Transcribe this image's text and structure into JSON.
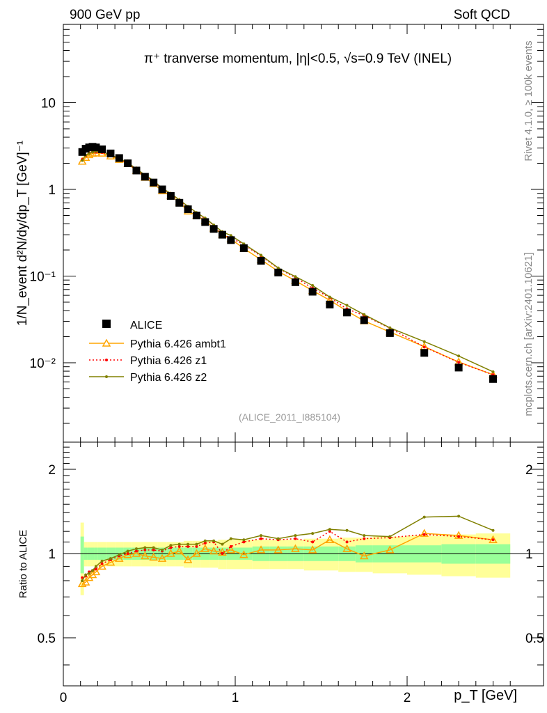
{
  "header": {
    "left": "900 GeV pp",
    "right": "Soft QCD"
  },
  "side": {
    "rivet": "Rivet 4.1.0, ≥ 100k events",
    "mcplots": "mcplots.cern.ch [arXiv:2401.10621]"
  },
  "watermark": "(ALICE_2011_I885104)",
  "chart_data": {
    "type": "scatter",
    "title": "π⁺ tranverse momentum, |η|<0.5, √s=0.9 TeV (INEL)",
    "xlabel": "p_T [GeV]",
    "ylabel": "1/N_event d²N/dy/dp_T [GeV]⁻¹",
    "ratio_ylabel": "Ratio to ALICE",
    "xlim": [
      0,
      2.65
    ],
    "ylim": [
      0.0012,
      80
    ],
    "ratio_ylim": [
      0.336,
      2.5
    ],
    "yscale": "log",
    "xticks": [
      "0",
      "1",
      "2"
    ],
    "yticks": [
      "10",
      "1",
      "10⁻¹",
      "10⁻²"
    ],
    "ratio_yticks": [
      "2",
      "1",
      "0.5"
    ],
    "x": [
      0.11,
      0.13,
      0.15,
      0.17,
      0.19,
      0.225,
      0.275,
      0.325,
      0.375,
      0.425,
      0.475,
      0.525,
      0.575,
      0.625,
      0.675,
      0.725,
      0.775,
      0.825,
      0.875,
      0.925,
      0.975,
      1.05,
      1.15,
      1.25,
      1.35,
      1.45,
      1.55,
      1.65,
      1.75,
      1.9,
      2.1,
      2.3,
      2.5
    ],
    "data": {
      "name": "ALICE",
      "values": [
        2.7,
        2.95,
        3.05,
        3.1,
        3.05,
        2.9,
        2.6,
        2.3,
        2.0,
        1.65,
        1.4,
        1.2,
        1.0,
        0.84,
        0.7,
        0.59,
        0.5,
        0.42,
        0.35,
        0.3,
        0.26,
        0.21,
        0.15,
        0.11,
        0.085,
        0.066,
        0.047,
        0.038,
        0.031,
        0.022,
        0.013,
        0.0088,
        0.0065
      ]
    },
    "series": [
      {
        "name": "Pythia 6.426 ambt1",
        "color": "#ffa500",
        "style": "solid",
        "marker": "triangle",
        "ratio": [
          0.78,
          0.79,
          0.82,
          0.84,
          0.86,
          0.9,
          0.93,
          0.96,
          0.99,
          1.0,
          0.98,
          0.97,
          0.96,
          1.0,
          1.02,
          0.95,
          1.0,
          1.04,
          1.02,
          1.01,
          1.03,
          0.99,
          1.03,
          1.03,
          1.04,
          1.03,
          1.12,
          1.04,
          0.98,
          1.03,
          1.18,
          1.16,
          1.12
        ]
      },
      {
        "name": "Pythia 6.426 z1",
        "color": "#ff0000",
        "style": "dotted",
        "marker": "dot",
        "ratio": [
          0.82,
          0.83,
          0.86,
          0.87,
          0.88,
          0.92,
          0.95,
          0.98,
          1.0,
          1.02,
          1.03,
          1.03,
          1.02,
          1.05,
          1.06,
          1.06,
          1.06,
          1.09,
          1.1,
          1.0,
          1.06,
          1.1,
          1.13,
          1.12,
          1.13,
          1.1,
          1.2,
          1.1,
          1.13,
          1.14,
          1.17,
          1.15,
          1.12
        ]
      },
      {
        "name": "Pythia 6.426 z2",
        "color": "#808000",
        "style": "solid",
        "marker": "dot",
        "ratio": [
          0.8,
          0.84,
          0.85,
          0.87,
          0.9,
          0.94,
          0.96,
          0.99,
          1.02,
          1.04,
          1.05,
          1.05,
          1.03,
          1.07,
          1.08,
          1.08,
          1.08,
          1.11,
          1.11,
          1.08,
          1.13,
          1.12,
          1.16,
          1.13,
          1.16,
          1.18,
          1.22,
          1.21,
          1.16,
          1.15,
          1.35,
          1.36,
          1.21
        ]
      }
    ],
    "band_edges": [
      0.1,
      0.12,
      0.14,
      0.16,
      0.18,
      0.2,
      0.25,
      0.3,
      0.35,
      0.4,
      0.45,
      0.5,
      0.55,
      0.6,
      0.65,
      0.7,
      0.75,
      0.8,
      0.85,
      0.9,
      0.95,
      1.0,
      1.1,
      1.2,
      1.3,
      1.4,
      1.5,
      1.6,
      1.7,
      1.8,
      2.0,
      2.2,
      2.4,
      2.6
    ],
    "band_stat": [
      0.15,
      0.05,
      0.05,
      0.05,
      0.05,
      0.05,
      0.05,
      0.05,
      0.05,
      0.05,
      0.05,
      0.05,
      0.05,
      0.05,
      0.05,
      0.05,
      0.05,
      0.05,
      0.05,
      0.05,
      0.05,
      0.05,
      0.06,
      0.06,
      0.06,
      0.06,
      0.06,
      0.06,
      0.07,
      0.07,
      0.07,
      0.08,
      0.08
    ],
    "band_total": [
      0.29,
      0.1,
      0.1,
      0.1,
      0.1,
      0.1,
      0.1,
      0.1,
      0.1,
      0.1,
      0.1,
      0.1,
      0.1,
      0.1,
      0.1,
      0.11,
      0.11,
      0.11,
      0.11,
      0.12,
      0.12,
      0.12,
      0.12,
      0.12,
      0.12,
      0.13,
      0.13,
      0.14,
      0.14,
      0.15,
      0.16,
      0.17,
      0.18
    ]
  }
}
